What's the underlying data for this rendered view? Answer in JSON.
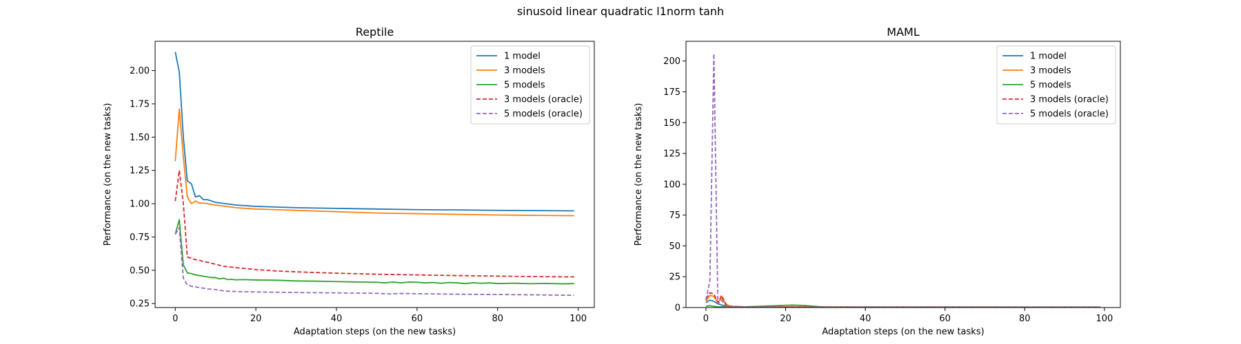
{
  "suptitle": "sinusoid linear quadratic l1norm tanh",
  "colors": {
    "1 model": "#1f77b4",
    "3 models": "#ff7f0e",
    "5 models": "#2ca02c",
    "3 models (oracle)": "#d62728",
    "5 models (oracle)": "#9467bd"
  },
  "chart_data": [
    {
      "type": "line",
      "title": "Reptile",
      "xlabel": "Adaptation steps (on the new tasks)",
      "ylabel": "Performance (on the new tasks)",
      "xlim": [
        -5,
        104
      ],
      "ylim": [
        0.22,
        2.22
      ],
      "xticks": [
        0,
        20,
        40,
        60,
        80,
        100
      ],
      "yticks": [
        0.25,
        0.5,
        0.75,
        1.0,
        1.25,
        1.5,
        1.75,
        2.0
      ],
      "ytick_labels": [
        "0.25",
        "0.50",
        "0.75",
        "1.00",
        "1.25",
        "1.50",
        "1.75",
        "2.00"
      ],
      "legend_position": "top-right",
      "series": [
        {
          "name": "1 model",
          "dashed": false,
          "points": [
            [
              0,
              2.14
            ],
            [
              1,
              1.99
            ],
            [
              2,
              1.5
            ],
            [
              3,
              1.17
            ],
            [
              4,
              1.15
            ],
            [
              5,
              1.05
            ],
            [
              6,
              1.06
            ],
            [
              7,
              1.03
            ],
            [
              8,
              1.03
            ],
            [
              9,
              1.02
            ],
            [
              10,
              1.01
            ],
            [
              15,
              0.99
            ],
            [
              20,
              0.98
            ],
            [
              30,
              0.97
            ],
            [
              40,
              0.965
            ],
            [
              50,
              0.96
            ],
            [
              60,
              0.955
            ],
            [
              70,
              0.953
            ],
            [
              80,
              0.95
            ],
            [
              90,
              0.948
            ],
            [
              99,
              0.946
            ]
          ]
        },
        {
          "name": "3 models",
          "dashed": false,
          "points": [
            [
              0,
              1.32
            ],
            [
              1,
              1.71
            ],
            [
              2,
              1.35
            ],
            [
              3,
              1.05
            ],
            [
              4,
              1.0
            ],
            [
              5,
              1.02
            ],
            [
              6,
              1.005
            ],
            [
              7,
              1.005
            ],
            [
              8,
              1.0
            ],
            [
              10,
              0.99
            ],
            [
              15,
              0.97
            ],
            [
              20,
              0.96
            ],
            [
              30,
              0.95
            ],
            [
              40,
              0.94
            ],
            [
              50,
              0.93
            ],
            [
              60,
              0.925
            ],
            [
              70,
              0.92
            ],
            [
              80,
              0.915
            ],
            [
              90,
              0.912
            ],
            [
              99,
              0.91
            ]
          ]
        },
        {
          "name": "5 models",
          "dashed": false,
          "points": [
            [
              0,
              0.77
            ],
            [
              1,
              0.88
            ],
            [
              2,
              0.54
            ],
            [
              3,
              0.48
            ],
            [
              4,
              0.475
            ],
            [
              5,
              0.465
            ],
            [
              6,
              0.46
            ],
            [
              7,
              0.455
            ],
            [
              8,
              0.45
            ],
            [
              9,
              0.445
            ],
            [
              10,
              0.445
            ],
            [
              11,
              0.435
            ],
            [
              12,
              0.44
            ],
            [
              13,
              0.43
            ],
            [
              14,
              0.432
            ],
            [
              15,
              0.428
            ],
            [
              17,
              0.43
            ],
            [
              20,
              0.427
            ],
            [
              25,
              0.425
            ],
            [
              30,
              0.42
            ],
            [
              35,
              0.418
            ],
            [
              40,
              0.415
            ],
            [
              45,
              0.412
            ],
            [
              50,
              0.41
            ],
            [
              52,
              0.405
            ],
            [
              54,
              0.412
            ],
            [
              56,
              0.405
            ],
            [
              58,
              0.412
            ],
            [
              60,
              0.41
            ],
            [
              62,
              0.405
            ],
            [
              64,
              0.408
            ],
            [
              66,
              0.402
            ],
            [
              68,
              0.408
            ],
            [
              70,
              0.405
            ],
            [
              72,
              0.4
            ],
            [
              74,
              0.406
            ],
            [
              76,
              0.402
            ],
            [
              78,
              0.405
            ],
            [
              80,
              0.4
            ],
            [
              84,
              0.403
            ],
            [
              88,
              0.399
            ],
            [
              92,
              0.401
            ],
            [
              96,
              0.398
            ],
            [
              99,
              0.4
            ]
          ]
        },
        {
          "name": "3 models (oracle)",
          "dashed": true,
          "points": [
            [
              0,
              1.02
            ],
            [
              1,
              1.25
            ],
            [
              2,
              1.0
            ],
            [
              3,
              0.6
            ],
            [
              4,
              0.59
            ],
            [
              5,
              0.58
            ],
            [
              6,
              0.575
            ],
            [
              7,
              0.565
            ],
            [
              8,
              0.56
            ],
            [
              10,
              0.545
            ],
            [
              12,
              0.53
            ],
            [
              15,
              0.52
            ],
            [
              20,
              0.505
            ],
            [
              25,
              0.495
            ],
            [
              30,
              0.488
            ],
            [
              40,
              0.478
            ],
            [
              50,
              0.47
            ],
            [
              60,
              0.465
            ],
            [
              70,
              0.46
            ],
            [
              80,
              0.456
            ],
            [
              90,
              0.452
            ],
            [
              99,
              0.45
            ]
          ]
        },
        {
          "name": "5 models (oracle)",
          "dashed": true,
          "points": [
            [
              0,
              0.77
            ],
            [
              1,
              0.82
            ],
            [
              2,
              0.44
            ],
            [
              3,
              0.39
            ],
            [
              4,
              0.38
            ],
            [
              5,
              0.375
            ],
            [
              6,
              0.37
            ],
            [
              8,
              0.36
            ],
            [
              10,
              0.355
            ],
            [
              12,
              0.345
            ],
            [
              15,
              0.34
            ],
            [
              20,
              0.337
            ],
            [
              30,
              0.333
            ],
            [
              40,
              0.33
            ],
            [
              50,
              0.327
            ],
            [
              53,
              0.322
            ],
            [
              56,
              0.326
            ],
            [
              60,
              0.324
            ],
            [
              70,
              0.32
            ],
            [
              80,
              0.318
            ],
            [
              90,
              0.315
            ],
            [
              99,
              0.312
            ]
          ]
        }
      ]
    },
    {
      "type": "line",
      "title": "MAML",
      "xlabel": "Adaptation steps (on the new tasks)",
      "ylabel": "Performance (on the new tasks)",
      "xlim": [
        -5,
        104
      ],
      "ylim": [
        0,
        216
      ],
      "xticks": [
        0,
        20,
        40,
        60,
        80,
        100
      ],
      "yticks": [
        0,
        25,
        50,
        75,
        100,
        125,
        150,
        175,
        200
      ],
      "ytick_labels": [
        "0",
        "25",
        "50",
        "75",
        "100",
        "125",
        "150",
        "175",
        "200"
      ],
      "legend_position": "top-right",
      "series": [
        {
          "name": "1 model",
          "dashed": false,
          "points": [
            [
              0,
              4
            ],
            [
              1,
              6
            ],
            [
              2,
              5
            ],
            [
              3,
              3
            ],
            [
              4,
              2
            ],
            [
              5,
              1
            ],
            [
              6,
              0.8
            ],
            [
              8,
              0.6
            ],
            [
              10,
              0.5
            ],
            [
              20,
              0.5
            ],
            [
              40,
              0.4
            ],
            [
              60,
              0.4
            ],
            [
              80,
              0.3
            ],
            [
              99,
              0.3
            ]
          ]
        },
        {
          "name": "3 models",
          "dashed": false,
          "points": [
            [
              0,
              5
            ],
            [
              1,
              10
            ],
            [
              2,
              9
            ],
            [
              3,
              4
            ],
            [
              4,
              8
            ],
            [
              5,
              3
            ],
            [
              6,
              1
            ],
            [
              8,
              0.8
            ],
            [
              10,
              0.6
            ],
            [
              20,
              0.6
            ],
            [
              40,
              0.5
            ],
            [
              60,
              0.5
            ],
            [
              80,
              0.4
            ],
            [
              99,
              0.4
            ]
          ]
        },
        {
          "name": "5 models",
          "dashed": false,
          "points": [
            [
              0,
              1
            ],
            [
              1,
              1.5
            ],
            [
              2,
              1
            ],
            [
              3,
              0.6
            ],
            [
              5,
              0.5
            ],
            [
              10,
              0.6
            ],
            [
              15,
              1.2
            ],
            [
              20,
              1.8
            ],
            [
              22,
              2
            ],
            [
              25,
              1.6
            ],
            [
              28,
              0.8
            ],
            [
              30,
              0.4
            ],
            [
              40,
              0.3
            ],
            [
              60,
              0.3
            ],
            [
              80,
              0.3
            ],
            [
              99,
              0.3
            ]
          ]
        },
        {
          "name": "3 models (oracle)",
          "dashed": true,
          "points": [
            [
              0,
              7
            ],
            [
              1,
              12
            ],
            [
              2,
              11
            ],
            [
              3,
              4
            ],
            [
              4,
              10
            ],
            [
              5,
              2
            ],
            [
              6,
              1
            ],
            [
              8,
              0.7
            ],
            [
              10,
              0.5
            ],
            [
              40,
              0.4
            ],
            [
              70,
              0.4
            ],
            [
              99,
              0.4
            ]
          ]
        },
        {
          "name": "5 models (oracle)",
          "dashed": true,
          "points": [
            [
              0,
              6
            ],
            [
              1,
              22
            ],
            [
              2,
              206
            ],
            [
              3,
              3
            ],
            [
              4,
              6
            ],
            [
              5,
              1
            ],
            [
              6,
              0.5
            ],
            [
              10,
              0.4
            ],
            [
              40,
              0.3
            ],
            [
              70,
              0.3
            ],
            [
              99,
              0.3
            ]
          ]
        }
      ]
    }
  ]
}
